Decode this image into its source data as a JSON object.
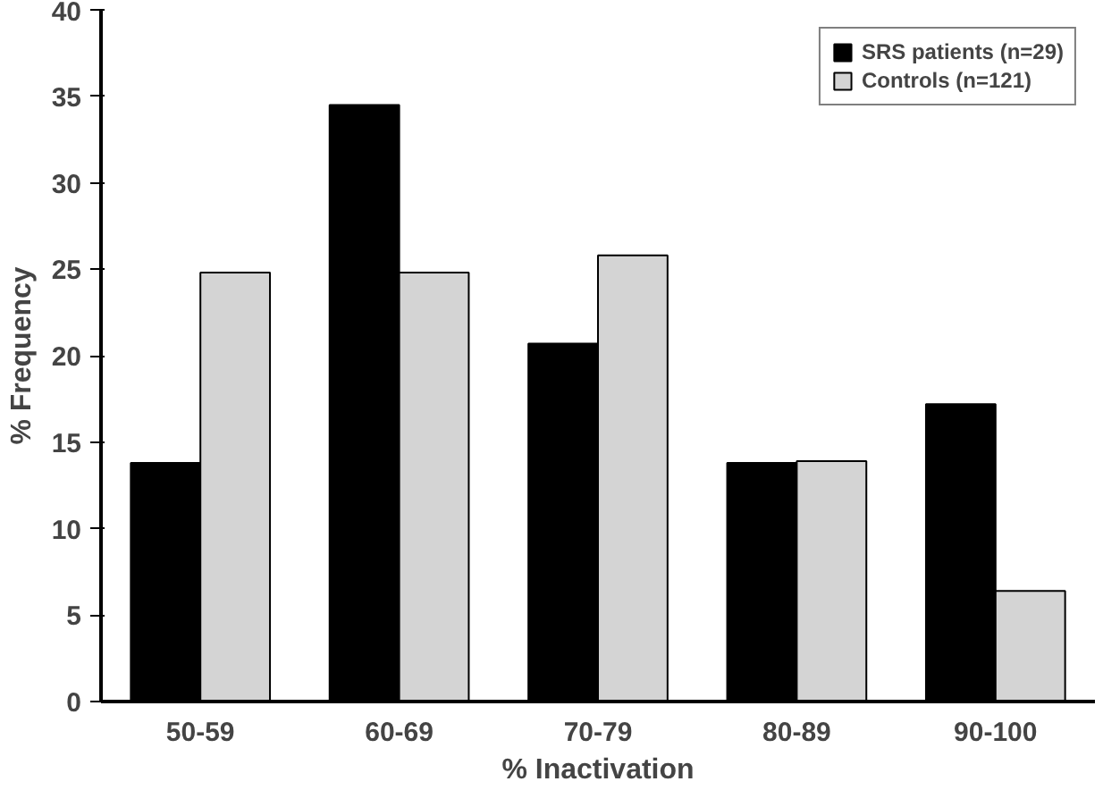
{
  "chart_data": {
    "type": "bar",
    "xlabel": "% Inactivation",
    "ylabel": "% Frequency",
    "categories": [
      "50-59",
      "60-69",
      "70-79",
      "80-89",
      "90-100"
    ],
    "series": [
      {
        "name": "SRS patients (n=29)",
        "color": "#000000",
        "values": [
          13.8,
          34.5,
          20.7,
          13.8,
          17.2
        ]
      },
      {
        "name": "Controls (n=121)",
        "color": "#d4d4d4",
        "values": [
          24.8,
          24.8,
          25.8,
          13.9,
          6.4
        ]
      }
    ],
    "ylim": [
      0,
      40
    ],
    "yticks": [
      0,
      5,
      10,
      15,
      20,
      25,
      30,
      35,
      40
    ],
    "grid": false,
    "legend": "top right"
  }
}
